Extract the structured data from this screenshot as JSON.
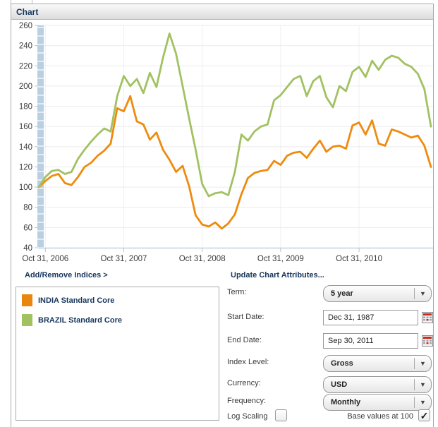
{
  "panel": {
    "title": "Chart"
  },
  "links": {
    "add_remove_indices": "Add/Remove Indices >",
    "update_attributes": "Update Chart Attributes..."
  },
  "legend": {
    "items": [
      {
        "label": "INDIA Standard Core",
        "color": "#e8860d"
      },
      {
        "label": "BRAZIL Standard Core",
        "color": "#a2c162"
      }
    ]
  },
  "form": {
    "term": {
      "label": "Term:",
      "value": "5 year"
    },
    "start_date": {
      "label": "Start Date:",
      "value": "Dec 31, 1987"
    },
    "end_date": {
      "label": "End Date:",
      "value": "Sep 30, 2011"
    },
    "index_level": {
      "label": "Index Level:",
      "value": "Gross"
    },
    "currency": {
      "label": "Currency:",
      "value": "USD"
    },
    "frequency": {
      "label": "Frequency:",
      "value": "Monthly"
    },
    "log_scaling": {
      "label": "Log Scaling",
      "checked": false
    },
    "base_values": {
      "label": "Base values at 100",
      "checked": true
    }
  },
  "chart_data": {
    "type": "line",
    "x_unit": "month",
    "xtick_labels": [
      "Oct 31, 2006",
      "Oct 31, 2007",
      "Oct 31, 2008",
      "Oct 31, 2009",
      "Oct 31, 2010"
    ],
    "xtick_indices": [
      1,
      13,
      25,
      37,
      49
    ],
    "ylim": [
      40,
      260
    ],
    "ytick_step": 20,
    "grid": true,
    "legend_position": "below-left",
    "series": [
      {
        "name": "INDIA Standard Core",
        "color": "#ee8b0e",
        "values": [
          100,
          106,
          111,
          113,
          104,
          102,
          110,
          120,
          124,
          131,
          136,
          143,
          178,
          175,
          190,
          165,
          162,
          147,
          154,
          137,
          127,
          115,
          121,
          101,
          72,
          63,
          61,
          65,
          59,
          64,
          73,
          93,
          109,
          114,
          116,
          117,
          126,
          122,
          131,
          134,
          135,
          129,
          138,
          146,
          135,
          140,
          141,
          138,
          161,
          164,
          152,
          166,
          143,
          141,
          157,
          155,
          152,
          149,
          151,
          141,
          120
        ]
      },
      {
        "name": "BRAZIL Standard Core",
        "color": "#a2c162",
        "values": [
          100,
          110,
          116,
          117,
          113,
          115,
          128,
          137,
          145,
          152,
          158,
          155,
          190,
          210,
          200,
          207,
          193,
          213,
          199,
          228,
          252,
          232,
          200,
          168,
          137,
          103,
          91,
          94,
          95,
          92,
          115,
          152,
          146,
          155,
          160,
          162,
          186,
          191,
          199,
          207,
          210,
          190,
          205,
          210,
          189,
          179,
          200,
          195,
          214,
          219,
          209,
          225,
          216,
          226,
          230,
          228,
          222,
          219,
          212,
          197,
          160
        ]
      }
    ]
  }
}
